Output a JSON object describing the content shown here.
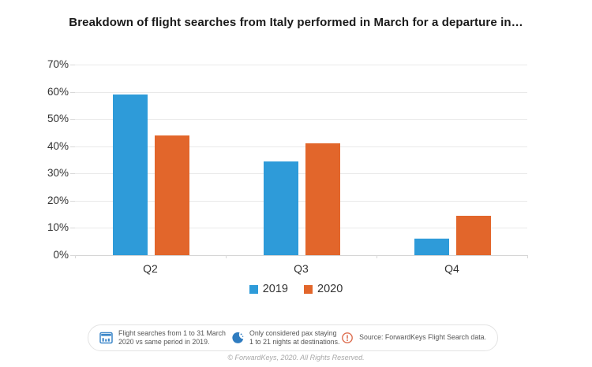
{
  "title": "Breakdown of flight searches from Italy performed in March for a departure in…",
  "chart_data": {
    "type": "bar",
    "categories": [
      "Q2",
      "Q3",
      "Q4"
    ],
    "series": [
      {
        "name": "2019",
        "color": "#2E9BD9",
        "values": [
          59,
          34.5,
          6
        ]
      },
      {
        "name": "2020",
        "color": "#E2662B",
        "values": [
          44,
          41,
          14.5
        ]
      }
    ],
    "ylim": [
      0,
      70
    ],
    "ytick_step": 10,
    "yticks": [
      "0%",
      "10%",
      "20%",
      "30%",
      "40%",
      "50%",
      "60%",
      "70%"
    ],
    "grid": true,
    "legend_position": "bottom",
    "xlabel": "",
    "ylabel": ""
  },
  "notes": [
    {
      "icon": "calendar-icon",
      "text": "Flight searches from 1 to 31 March 2020 vs same period in 2019."
    },
    {
      "icon": "moon-icon",
      "text": "Only considered pax staying 1 to 21 nights at destinations."
    },
    {
      "icon": "warning-icon",
      "text": "Source: ForwardKeys Flight Search data."
    }
  ],
  "footer": "© ForwardKeys, 2020. All Rights Reserved.",
  "colors": {
    "series_2019": "#2E9BD9",
    "series_2020": "#E2662B",
    "gridline": "#E9E9E9",
    "axis": "#D5D5D5",
    "note_icon_blue": "#3D87C9",
    "moon_blue": "#2F7CC0",
    "warning_orange": "#DD6E50"
  }
}
